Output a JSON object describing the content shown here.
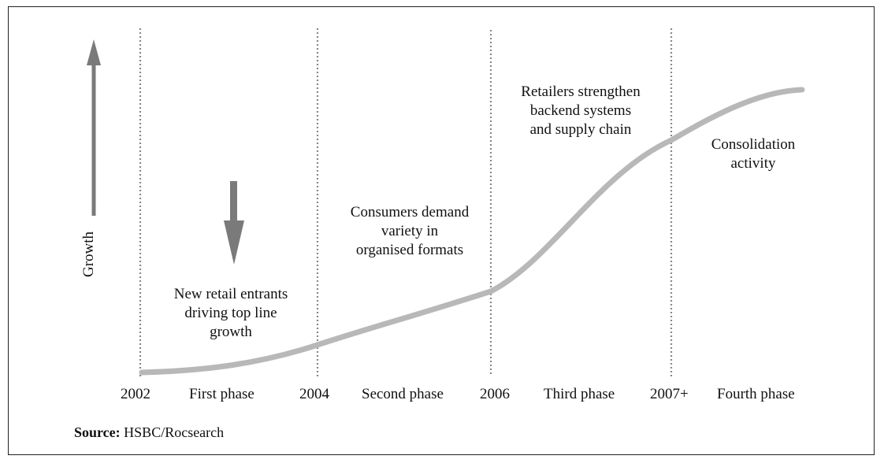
{
  "y_axis_label": "Growth",
  "x_labels": {
    "y2002": "2002",
    "first_phase": "First phase",
    "y2004": "2004",
    "second_phase": "Second phase",
    "y2006": "2006",
    "third_phase": "Third phase",
    "y2007": "2007+",
    "fourth_phase": "Fourth phase"
  },
  "annotations": {
    "phase1": [
      "New retail entrants",
      "driving top line",
      "growth"
    ],
    "phase2": [
      "Consumers demand",
      "variety in",
      "organised formats"
    ],
    "phase3": [
      "Retailers strengthen",
      "backend systems",
      "and supply chain"
    ],
    "phase4": [
      "Consolidation",
      "activity"
    ]
  },
  "source": {
    "label": "Source:",
    "text": "HSBC/Rocsearch"
  },
  "colors": {
    "curve": "#b8b8b8",
    "arrow": "#7a7a7a",
    "divider": "#888888"
  },
  "icons": {
    "up_arrow": "arrow-up-icon",
    "down_arrow": "arrow-down-icon"
  }
}
